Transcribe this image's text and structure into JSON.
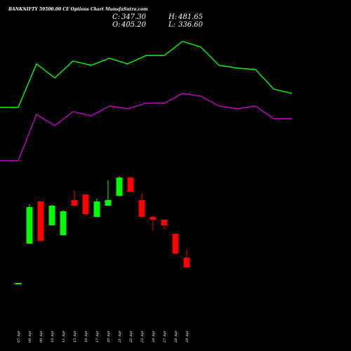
{
  "chart_data": {
    "type": "candlestick",
    "title": "BANKNIFTY 59500.00 CE Options Chart MunafaSutra.com",
    "ohlc": {
      "c_label": "C:",
      "c_value": "347.30",
      "h_label": "H:",
      "h_value": "481.65",
      "o_label": "O:",
      "o_value": "405.20",
      "l_label": "L:",
      "l_value": "336.60"
    },
    "categories": [
      "07 Apr",
      "08 Apr",
      "09 Apr",
      "10 Apr",
      "11 Apr",
      "15 Apr",
      "16 Apr",
      "17 Apr",
      "20 Apr",
      "21 Apr",
      "22 Apr",
      "23 Apr",
      "24 Apr",
      "27 Apr",
      "28 Apr",
      "29 Apr"
    ],
    "candles": [
      {
        "open": 2.0,
        "close": 2.0,
        "high": 2.0,
        "low": 2.0
      },
      {
        "open": 16.0,
        "close": 29.0,
        "high": 30.0,
        "low": 16.0
      },
      {
        "open": 31.0,
        "close": 17.0,
        "high": 31.0,
        "low": 16.5
      },
      {
        "open": 22.5,
        "close": 29.5,
        "high": 29.8,
        "low": 22.5
      },
      {
        "open": 19.0,
        "close": 27.5,
        "high": 28.0,
        "low": 19.0
      },
      {
        "open": 31.5,
        "close": 29.5,
        "high": 35.0,
        "low": 29.5
      },
      {
        "open": 33.5,
        "close": 26.5,
        "high": 33.5,
        "low": 26.0
      },
      {
        "open": 25.5,
        "close": 31.0,
        "high": 32.0,
        "low": 25.5
      },
      {
        "open": 29.5,
        "close": 31.5,
        "high": 38.5,
        "low": 29.5
      },
      {
        "open": 33.0,
        "close": 39.5,
        "high": 40.0,
        "low": 33.0
      },
      {
        "open": 39.5,
        "close": 34.5,
        "high": 40.0,
        "low": 34.5
      },
      {
        "open": 31.5,
        "close": 25.5,
        "high": 34.0,
        "low": 25.5
      },
      {
        "open": 25.5,
        "close": 24.5,
        "high": 26.0,
        "low": 20.5
      },
      {
        "open": 24.5,
        "close": 22.5,
        "high": 24.5,
        "low": 21.0
      },
      {
        "open": 19.5,
        "close": 12.5,
        "high": 19.5,
        "low": 12.0
      },
      {
        "open": 11.0,
        "close": 7.5,
        "high": 14.0,
        "low": 7.5
      }
    ],
    "upper_band": [
      64.5,
      64.5,
      80.0,
      75.0,
      81.0,
      79.5,
      82.0,
      80.0,
      83.0,
      83.0,
      88.0,
      86.0,
      79.5,
      78.5,
      78.0,
      71.0,
      69.5
    ],
    "lower_band": [
      45.5,
      45.5,
      62.0,
      58.0,
      63.0,
      61.5,
      65.0,
      64.0,
      66.0,
      66.0,
      69.5,
      68.5,
      65.0,
      64.0,
      65.0,
      60.5,
      60.5
    ],
    "band_x": [
      0,
      1.0,
      2.0,
      3.0,
      4.0,
      5.0,
      6.0,
      7.0,
      8.0,
      9.0,
      10.0,
      11.0,
      12.0,
      13.0,
      14.0,
      15.0,
      16.0
    ],
    "colors": {
      "up": "#00ff00",
      "down": "#ff0000",
      "upper_band": "#00ff00",
      "lower_band": "#cc00cc",
      "background": "#000000",
      "text": "#ffffff"
    }
  }
}
